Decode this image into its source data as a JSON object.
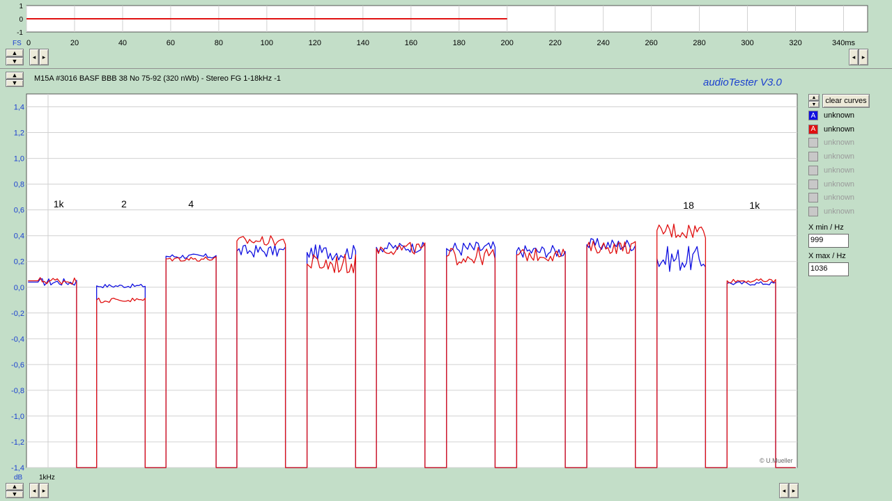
{
  "top_strip": {
    "y_ticks": [
      "1",
      "0",
      "-1"
    ],
    "y_label": "FS",
    "x_ticks": [
      "0",
      "20",
      "40",
      "60",
      "80",
      "100",
      "120",
      "140",
      "160",
      "180",
      "200",
      "220",
      "240",
      "260",
      "280",
      "300",
      "320",
      "340ms"
    ],
    "x_max_ms": 350,
    "signal_end_ms": 200,
    "signal_color": "#e01010"
  },
  "header": {
    "title": "M15A #3016 BASF BBB 38 No 75-92 (320 nWb) - Stereo FG 1-18kHz -1",
    "app_name": "audioTester  V3.0"
  },
  "controls": {
    "clear_curves": "clear curves",
    "legend": [
      {
        "letter": "A",
        "label": "unknown",
        "color": "#1010e0",
        "active": true
      },
      {
        "letter": "A",
        "label": "unknown",
        "color": "#e01010",
        "active": true
      },
      {
        "letter": "",
        "label": "unknown",
        "color": "#c8c8c8",
        "active": false
      },
      {
        "letter": "",
        "label": "unknown",
        "color": "#c8c8c8",
        "active": false
      },
      {
        "letter": "",
        "label": "unknown",
        "color": "#c8c8c8",
        "active": false
      },
      {
        "letter": "",
        "label": "unknown",
        "color": "#c8c8c8",
        "active": false
      },
      {
        "letter": "",
        "label": "unknown",
        "color": "#c8c8c8",
        "active": false
      },
      {
        "letter": "",
        "label": "unknown",
        "color": "#c8c8c8",
        "active": false
      }
    ],
    "xmin_label": "X min / Hz",
    "xmin_value": "999",
    "xmax_label": "X max / Hz",
    "xmax_value": "1036"
  },
  "chart_data": {
    "type": "line",
    "ylabel": "dB",
    "xlabel": "1kHz",
    "ylim": [
      -1.4,
      1.5
    ],
    "y_ticks": [
      "1,4",
      "1,2",
      "1,0",
      "0,8",
      "0,6",
      "0,4",
      "0,2",
      "0,0",
      "-0,2",
      "-0,4",
      "-0,6",
      "-0,8",
      "-1,0",
      "-1,2",
      "-1,4"
    ],
    "y_tick_values": [
      1.4,
      1.2,
      1.0,
      0.8,
      0.6,
      0.4,
      0.2,
      0.0,
      -0.2,
      -0.4,
      -0.6,
      -0.8,
      -1.0,
      -1.2,
      -1.4
    ],
    "x_range": [
      0,
      100
    ],
    "grid": true,
    "annotations": [
      {
        "text": "1k",
        "x": 3.5,
        "y": 0.62
      },
      {
        "text": "2",
        "x": 12.3,
        "y": 0.62
      },
      {
        "text": "4",
        "x": 21.0,
        "y": 0.62
      },
      {
        "text": "18",
        "x": 85.2,
        "y": 0.61
      },
      {
        "text": "1k",
        "x": 93.8,
        "y": 0.61
      }
    ],
    "credit": "© U.Mueller",
    "floor": -1.4,
    "series": [
      {
        "name": "unknown",
        "color": "#1010e0",
        "blocks": [
          {
            "x0": 1.5,
            "x1": 6.5,
            "v": 0.04,
            "amp": 0.03
          },
          {
            "x0": 9.1,
            "x1": 15.4,
            "v": 0.01,
            "amp": 0.015
          },
          {
            "x0": 18.1,
            "x1": 24.6,
            "v": 0.24,
            "amp": 0.02
          },
          {
            "x0": 27.3,
            "x1": 33.6,
            "v": 0.28,
            "amp": 0.05
          },
          {
            "x0": 36.4,
            "x1": 42.7,
            "v": 0.27,
            "amp": 0.06
          },
          {
            "x0": 45.4,
            "x1": 51.7,
            "v": 0.31,
            "amp": 0.04
          },
          {
            "x0": 54.5,
            "x1": 60.8,
            "v": 0.3,
            "amp": 0.06
          },
          {
            "x0": 63.6,
            "x1": 69.9,
            "v": 0.28,
            "amp": 0.05
          },
          {
            "x0": 72.7,
            "x1": 79.0,
            "v": 0.33,
            "amp": 0.05
          },
          {
            "x0": 81.8,
            "x1": 88.1,
            "v": 0.22,
            "amp": 0.1
          },
          {
            "x0": 90.9,
            "x1": 97.2,
            "v": 0.03,
            "amp": 0.015
          }
        ]
      },
      {
        "name": "unknown",
        "color": "#e01010",
        "blocks": [
          {
            "x0": 1.5,
            "x1": 6.5,
            "v": 0.05,
            "amp": 0.03
          },
          {
            "x0": 9.1,
            "x1": 15.4,
            "v": -0.1,
            "amp": 0.02
          },
          {
            "x0": 18.1,
            "x1": 24.6,
            "v": 0.22,
            "amp": 0.02
          },
          {
            "x0": 27.3,
            "x1": 33.6,
            "v": 0.36,
            "amp": 0.04
          },
          {
            "x0": 36.4,
            "x1": 42.7,
            "v": 0.18,
            "amp": 0.08
          },
          {
            "x0": 45.4,
            "x1": 51.7,
            "v": 0.3,
            "amp": 0.05
          },
          {
            "x0": 54.5,
            "x1": 60.8,
            "v": 0.24,
            "amp": 0.07
          },
          {
            "x0": 63.6,
            "x1": 69.9,
            "v": 0.25,
            "amp": 0.05
          },
          {
            "x0": 72.7,
            "x1": 79.0,
            "v": 0.31,
            "amp": 0.05
          },
          {
            "x0": 81.8,
            "x1": 88.1,
            "v": 0.44,
            "amp": 0.07
          },
          {
            "x0": 90.9,
            "x1": 97.2,
            "v": 0.05,
            "amp": 0.015
          }
        ]
      }
    ]
  }
}
